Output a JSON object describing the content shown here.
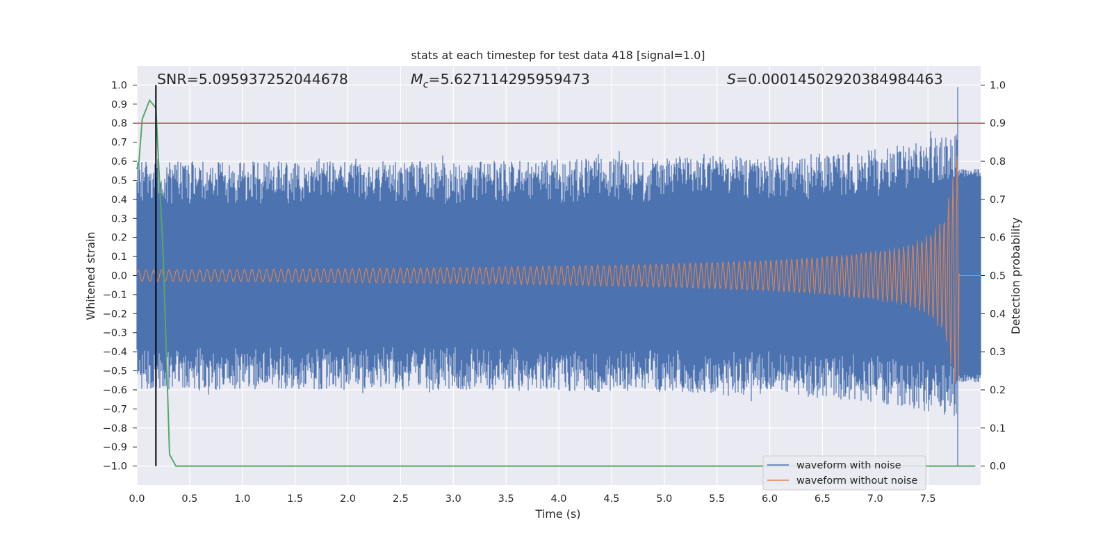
{
  "chart_data": {
    "type": "line",
    "title": "stats at each timestep for test data 418 [signal=1.0]",
    "xlabel": "Time (s)",
    "ylabel_left": "Whitened strain",
    "ylabel_right": "Detection probability",
    "xlim": [
      0.0,
      8.0
    ],
    "ylim_left": [
      -1.1,
      1.1
    ],
    "ylim_right": [
      -0.05,
      1.05
    ],
    "x_ticks": [
      "0.0",
      "0.5",
      "1.0",
      "1.5",
      "2.0",
      "2.5",
      "3.0",
      "3.5",
      "4.0",
      "4.5",
      "5.0",
      "5.5",
      "6.0",
      "6.5",
      "7.0",
      "7.5"
    ],
    "x_tick_values": [
      0,
      0.5,
      1,
      1.5,
      2,
      2.5,
      3,
      3.5,
      4,
      4.5,
      5,
      5.5,
      6,
      6.5,
      7,
      7.5
    ],
    "y_ticks_left": [
      "1.0",
      "0.9",
      "0.8",
      "0.7",
      "0.6",
      "0.5",
      "0.4",
      "0.3",
      "0.2",
      "0.1",
      "0.0",
      "−0.1",
      "−0.2",
      "−0.3",
      "−0.4",
      "−0.5",
      "−0.6",
      "−0.7",
      "−0.8",
      "−0.9",
      "−1.0"
    ],
    "y_tick_values_left": [
      1,
      0.9,
      0.8,
      0.7,
      0.6,
      0.5,
      0.4,
      0.3,
      0.2,
      0.1,
      0,
      -0.1,
      -0.2,
      -0.3,
      -0.4,
      -0.5,
      -0.6,
      -0.7,
      -0.8,
      -0.9,
      -1
    ],
    "y_ticks_right": [
      "1.0",
      "0.9",
      "0.8",
      "0.7",
      "0.6",
      "0.5",
      "0.4",
      "0.3",
      "0.2",
      "0.1",
      "0.0"
    ],
    "y_tick_values_right": [
      1,
      0.9,
      0.8,
      0.7,
      0.6,
      0.5,
      0.4,
      0.3,
      0.2,
      0.1,
      0
    ],
    "grid": true,
    "legend_position": "lower-right",
    "annotations": {
      "snr": "SNR=5.095937252044678",
      "mc_symbol": "M",
      "mc_sub": "c",
      "mc_value": "=5.627114295959473",
      "s_symbol": "S",
      "s_value": "=0.00014502920384984463"
    },
    "threshold_right": 0.9,
    "detection_time": 0.18,
    "series": [
      {
        "name": "waveform with noise",
        "color": "#4c72b0",
        "axis": "left",
        "envelope": {
          "t": [
            0,
            1,
            2,
            3,
            4,
            5,
            6,
            6.5,
            7,
            7.4,
            7.7,
            7.78
          ],
          "amp": [
            0.6,
            0.6,
            0.6,
            0.6,
            0.61,
            0.62,
            0.63,
            0.64,
            0.67,
            0.7,
            0.75,
            0.75
          ]
        },
        "peak_time": 7.78,
        "peak_max": 0.99,
        "peak_min": -1.0,
        "end_time": 8.0
      },
      {
        "name": "waveform without noise",
        "color": "#dd8452",
        "axis": "left",
        "envelope": {
          "t": [
            0,
            1,
            2,
            3,
            4,
            5,
            6,
            6.5,
            7,
            7.3,
            7.5,
            7.65,
            7.75,
            7.78
          ],
          "amp": [
            0.03,
            0.033,
            0.037,
            0.042,
            0.05,
            0.062,
            0.082,
            0.1,
            0.13,
            0.16,
            0.21,
            0.3,
            0.55,
            0.68
          ]
        },
        "end_time": 7.8
      },
      {
        "name": "detection probability",
        "color": "#55a868",
        "axis": "right",
        "x": [
          0.0,
          0.02,
          0.05,
          0.12,
          0.18,
          0.25,
          0.31,
          0.37,
          7.95
        ],
        "y": [
          0.78,
          0.8,
          0.91,
          0.96,
          0.94,
          0.55,
          0.03,
          0.0,
          0.0
        ]
      }
    ]
  }
}
